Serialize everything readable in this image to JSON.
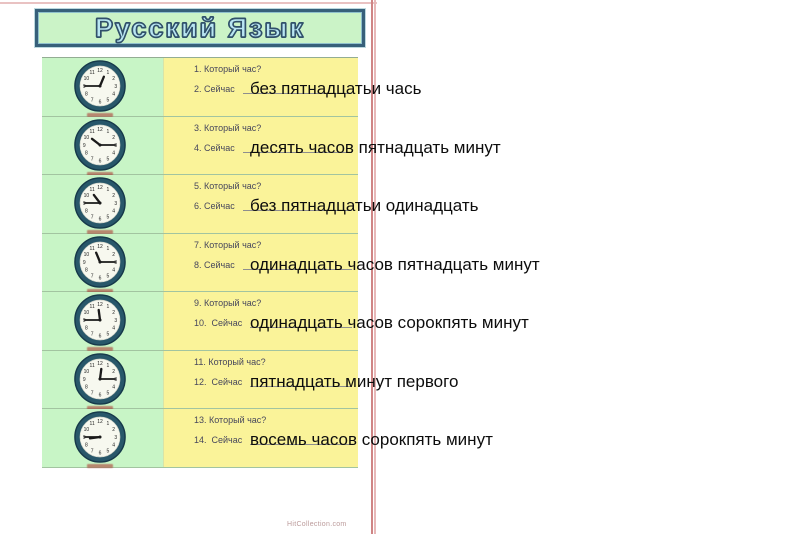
{
  "page": {
    "title": "Русский Язык",
    "footer_watermark": "HitCollection.com"
  },
  "colors": {
    "title_box_bg": "#cbf3c7",
    "title_box_border": "#37607a",
    "title_letters": "#b9e6f2",
    "clock_column_bg": "#c8f5c6",
    "question_column_bg": "#faf399",
    "question_text": "#47475c",
    "answer_text": "#0d0d0d",
    "clock_ring": "#28576a",
    "page_edge_line": "#cf8585"
  },
  "rows": [
    {
      "question1": "1. Который час?",
      "question2": "2. Сейчас",
      "answer": "без пятнадцатьи чась",
      "time": "12:45"
    },
    {
      "question1": "3. Который час?",
      "question2": "4. Сейчас",
      "answer": "десять часов пятнадцать минут",
      "time": "10:15"
    },
    {
      "question1": "5. Который час?",
      "question2": "6. Сейчас",
      "answer": "без пятнадцатьи одинадцать",
      "time": "10:45"
    },
    {
      "question1": "7. Который час?",
      "question2": "8. Сейчас",
      "answer": "одинадцать часов пятнадцать минут",
      "time": "11:15"
    },
    {
      "question1": "9. Который час?",
      "question2": "10.  Сейчас",
      "answer": "одинадцать часов сорокпять минут",
      "time": "11:45"
    },
    {
      "question1": "11.  Который час?",
      "question2": "12.  Сейчас",
      "answer": "пятнадцать минут первого",
      "time": "12:15"
    },
    {
      "question1": "13.  Который час?",
      "question2": "14.  Сейчас",
      "answer": "восемь часов сорокпять минут",
      "time": "8:45"
    }
  ]
}
